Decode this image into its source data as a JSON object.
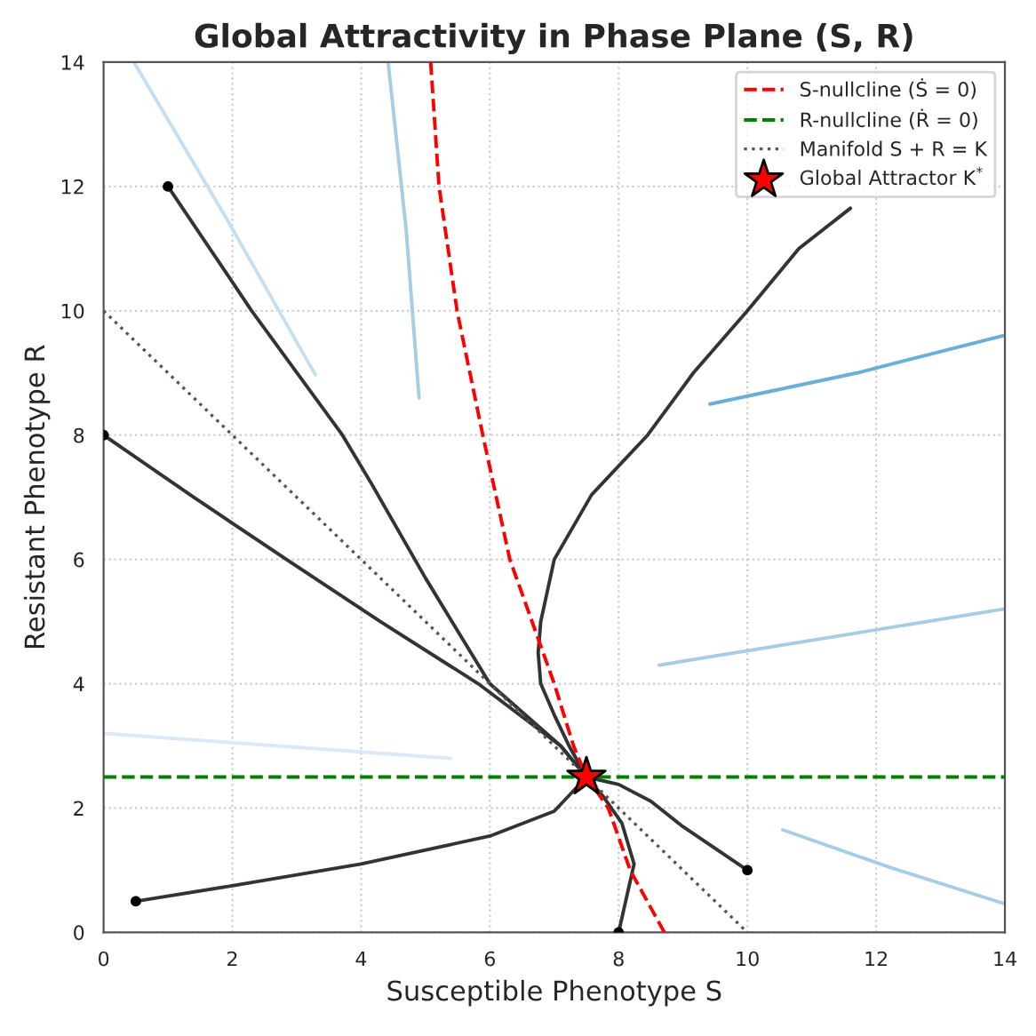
{
  "chart_data": {
    "type": "line",
    "title": "Global Attractivity in Phase Plane (S, R)",
    "xlabel": "Susceptible Phenotype S",
    "ylabel": "Resistant Phenotype R",
    "xlim": [
      0,
      14
    ],
    "ylim": [
      0,
      14
    ],
    "xticks": [
      0,
      2,
      4,
      6,
      8,
      10,
      12,
      14
    ],
    "yticks": [
      0,
      2,
      4,
      6,
      8,
      10,
      12,
      14
    ],
    "grid": true,
    "legend": "top right",
    "series": [
      {
        "color": "#a6cde4",
        "x": [
          13.97,
          11.3,
          8.63
        ],
        "values": [
          5.2,
          4.75,
          4.3
        ],
        "line_style": "solid",
        "marker": "none"
      },
      {
        "color": "#a6cde4",
        "x": [
          13.97,
          12.2,
          10.55
        ],
        "values": [
          0.47,
          1.05,
          1.65
        ],
        "line_style": "solid",
        "marker": "none"
      },
      {
        "color": "#c6dff0",
        "x": [
          0.47,
          1.9,
          3.29
        ],
        "values": [
          14,
          11.5,
          8.97
        ],
        "line_style": "solid",
        "marker": "none"
      },
      {
        "color": "#dbe9f6",
        "x": [
          0.03,
          2.7,
          5.39
        ],
        "values": [
          3.2,
          3.0,
          2.8
        ],
        "line_style": "solid",
        "marker": "none"
      },
      {
        "color": "#a6cde4",
        "x": [
          4.42,
          4.7,
          4.9
        ],
        "values": [
          14,
          11.3,
          8.6
        ],
        "line_style": "solid",
        "marker": "none"
      },
      {
        "color": "#6baed6",
        "x": [
          13.97,
          11.7,
          9.42
        ],
        "values": [
          9.6,
          9.0,
          8.5
        ],
        "line_style": "solid",
        "marker": "none"
      },
      {
        "color": "#333333",
        "x": [
          1,
          2.3,
          3.71,
          4.16,
          5.0,
          6.0,
          7.1,
          7.5
        ],
        "values": [
          12,
          10,
          8,
          7.22,
          5.7,
          4,
          3,
          2.5
        ],
        "line_style": "solid",
        "marker": "none"
      },
      {
        "color": "#333333",
        "x": [
          0,
          1.4,
          2.84,
          4.3,
          5.82,
          7.1,
          7.5
        ],
        "values": [
          8,
          7,
          6,
          5,
          4,
          3,
          2.5
        ],
        "line_style": "solid",
        "marker": "none"
      },
      {
        "color": "#333333",
        "x": [
          0.5,
          2,
          4,
          6,
          7,
          7.5
        ],
        "values": [
          0.5,
          0.75,
          1.1,
          1.55,
          1.95,
          2.5
        ],
        "line_style": "solid",
        "marker": "none"
      },
      {
        "color": "#333333",
        "x": [
          10,
          9,
          8.5,
          8,
          7.5
        ],
        "values": [
          1,
          1.7,
          2.11,
          2.38,
          2.5
        ],
        "line_style": "solid",
        "marker": "none"
      },
      {
        "color": "#333333",
        "x": [
          8,
          8.24,
          8.05,
          7.75,
          7.5
        ],
        "values": [
          0,
          1.1,
          1.76,
          2.2,
          2.5
        ],
        "line_style": "solid",
        "marker": "none"
      },
      {
        "color": "#333333",
        "x": [
          11.6,
          10.8,
          10.0,
          9.16,
          8.45,
          7.58,
          7.0,
          6.79,
          6.75,
          6.79,
          7.0,
          7.23,
          7.5
        ],
        "values": [
          11.65,
          11,
          10,
          9,
          8,
          7.04,
          6,
          5,
          4.5,
          4,
          3.5,
          3,
          2.5
        ],
        "line_style": "solid",
        "marker": "none"
      },
      {
        "type": "scatter",
        "color": "#000000",
        "x": [
          1,
          0,
          0.5,
          10,
          8
        ],
        "values": [
          12,
          8,
          0.5,
          1,
          0
        ],
        "marker": "circle"
      },
      {
        "name": "S-nullcline (Ṡ = 0)",
        "color": "#ff0000",
        "x": [
          5.08,
          5.21,
          5.49,
          5.89,
          6.31,
          7.0,
          7.3,
          7.5,
          7.84,
          8.18,
          8.71
        ],
        "values": [
          14,
          12,
          10,
          8,
          6,
          4,
          3,
          2.5,
          2,
          1,
          0
        ],
        "line_style": "dashed",
        "marker": "none"
      },
      {
        "name": "R-nullcline (Ṙ = 0)",
        "color": "#008000",
        "x": [
          0,
          14
        ],
        "values": [
          2.5,
          2.5
        ],
        "line_style": "dashed",
        "marker": "none"
      },
      {
        "name": "Manifold S + R = K",
        "color": "#555555",
        "x": [
          0,
          10
        ],
        "values": [
          10,
          0
        ],
        "line_style": "dotted",
        "marker": "none"
      },
      {
        "name": "Global Attractor K$^{*}$",
        "type": "scatter",
        "color": "#ff0000",
        "x": [
          7.5
        ],
        "values": [
          2.5
        ],
        "marker": "star"
      }
    ]
  }
}
